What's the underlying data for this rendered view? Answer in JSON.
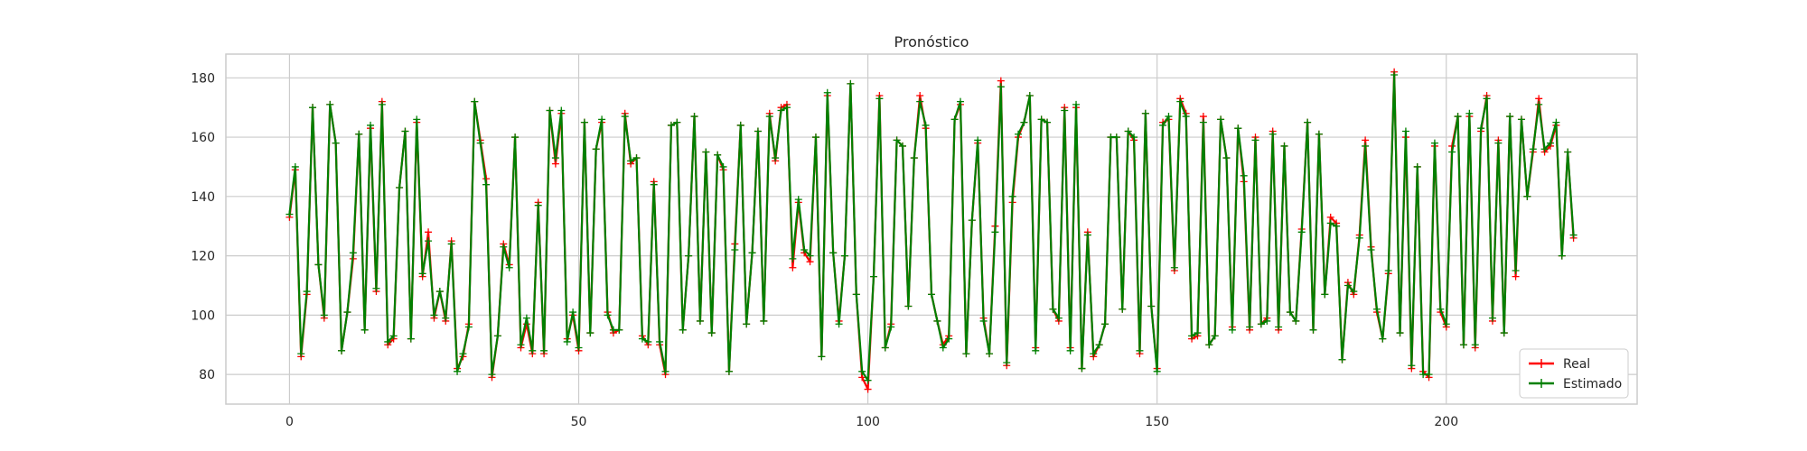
{
  "chart_data": {
    "type": "line",
    "title": "Pronóstico",
    "xlabel": "",
    "ylabel": "",
    "xlim": [
      -11,
      233
    ],
    "ylim": [
      70,
      188
    ],
    "xticks": [
      0,
      50,
      100,
      150,
      200
    ],
    "yticks": [
      80,
      100,
      120,
      140,
      160,
      180
    ],
    "grid": true,
    "legend_position": "lower-right",
    "colors": {
      "Real": "#ff0000",
      "Estimado": "#008000"
    },
    "series": [
      {
        "name": "Real",
        "marker": "+",
        "values": [
          133,
          149,
          86,
          107,
          170,
          117,
          99,
          171,
          158,
          88,
          101,
          119,
          161,
          95,
          163,
          108,
          172,
          90,
          92,
          143,
          162,
          92,
          165,
          113,
          128,
          99,
          108,
          98,
          125,
          82,
          86,
          97,
          172,
          159,
          146,
          79,
          93,
          124,
          117,
          160,
          89,
          97,
          87,
          138,
          87,
          169,
          151,
          168,
          92,
          100,
          88,
          165,
          94,
          156,
          165,
          101,
          94,
          95,
          168,
          151,
          153,
          93,
          90,
          145,
          90,
          80,
          164,
          165,
          95,
          120,
          167,
          98,
          155,
          94,
          154,
          149,
          81,
          124,
          164,
          97,
          121,
          162,
          98,
          168,
          152,
          170,
          171,
          116,
          138,
          121,
          118,
          160,
          86,
          174,
          121,
          98,
          120,
          178,
          107,
          79,
          75,
          113,
          174,
          89,
          97,
          159,
          157,
          103,
          153,
          174,
          163,
          107,
          98,
          90,
          93,
          166,
          171,
          87,
          132,
          158,
          99,
          87,
          130,
          179,
          83,
          138,
          160,
          165,
          174,
          89,
          166,
          165,
          102,
          98,
          170,
          89,
          170,
          82,
          128,
          86,
          90,
          97,
          160,
          160,
          102,
          162,
          159,
          87,
          168,
          103,
          82,
          165,
          166,
          115,
          173,
          168,
          92,
          93,
          167,
          90,
          93,
          166,
          153,
          96,
          163,
          145,
          95,
          160,
          97,
          99,
          162,
          95,
          157,
          101,
          98,
          129,
          165,
          95,
          161,
          107,
          133,
          131,
          85,
          111,
          107,
          127,
          159,
          123,
          101,
          92,
          114,
          182,
          94,
          160,
          82,
          150,
          81,
          79,
          157,
          101,
          96,
          157,
          167,
          90,
          167,
          89,
          162,
          174,
          98,
          159,
          94,
          167,
          113,
          166,
          140,
          155,
          173,
          155,
          157,
          164,
          120,
          155,
          126
        ]
      },
      {
        "name": "Estimado",
        "marker": "+",
        "values": [
          134,
          150,
          87,
          108,
          170,
          117,
          100,
          171,
          158,
          88,
          101,
          121,
          161,
          95,
          164,
          109,
          171,
          91,
          93,
          143,
          162,
          92,
          166,
          114,
          125,
          100,
          108,
          99,
          124,
          81,
          87,
          96,
          172,
          158,
          144,
          80,
          93,
          123,
          116,
          160,
          90,
          99,
          88,
          137,
          88,
          169,
          153,
          169,
          91,
          101,
          89,
          165,
          94,
          156,
          166,
          100,
          95,
          95,
          167,
          152,
          153,
          92,
          91,
          144,
          91,
          81,
          164,
          165,
          95,
          120,
          167,
          98,
          155,
          94,
          154,
          150,
          81,
          122,
          164,
          97,
          121,
          162,
          98,
          167,
          153,
          169,
          170,
          119,
          139,
          122,
          120,
          160,
          86,
          175,
          121,
          97,
          120,
          178,
          107,
          81,
          78,
          113,
          173,
          89,
          96,
          159,
          157,
          103,
          153,
          172,
          164,
          107,
          98,
          89,
          92,
          166,
          172,
          87,
          132,
          159,
          98,
          87,
          128,
          177,
          84,
          140,
          161,
          165,
          174,
          88,
          166,
          165,
          102,
          99,
          169,
          88,
          171,
          82,
          127,
          87,
          90,
          97,
          160,
          160,
          102,
          162,
          160,
          88,
          168,
          103,
          81,
          164,
          167,
          116,
          172,
          167,
          93,
          94,
          165,
          90,
          93,
          166,
          153,
          95,
          163,
          147,
          96,
          159,
          97,
          98,
          161,
          96,
          157,
          101,
          98,
          128,
          165,
          95,
          161,
          107,
          131,
          130,
          85,
          110,
          108,
          126,
          157,
          122,
          102,
          92,
          115,
          181,
          94,
          162,
          83,
          150,
          80,
          80,
          158,
          102,
          97,
          155,
          167,
          90,
          168,
          90,
          163,
          173,
          99,
          158,
          94,
          167,
          115,
          166,
          140,
          156,
          171,
          156,
          158,
          165,
          120,
          155,
          127
        ]
      }
    ]
  }
}
